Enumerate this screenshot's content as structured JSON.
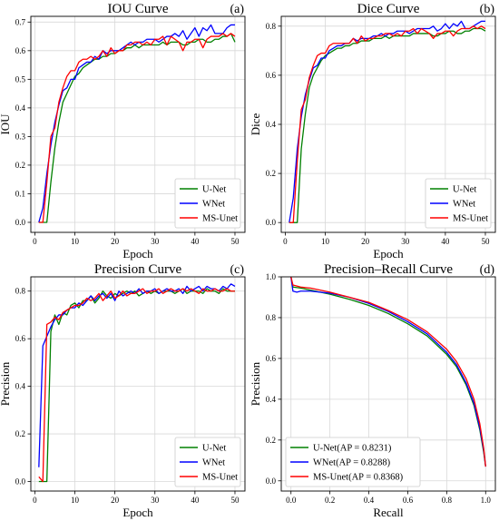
{
  "chart_data": [
    {
      "type": "line",
      "title": "IOU Curve",
      "panel_label": "(a)",
      "xlabel": "Epoch",
      "ylabel": "IOU",
      "xlim": [
        -1,
        52.5
      ],
      "ylim": [
        -0.035,
        0.72
      ],
      "xticks": [
        0,
        10,
        20,
        30,
        40,
        50
      ],
      "yticks": [
        0.0,
        0.1,
        0.2,
        0.3,
        0.4,
        0.5,
        0.6,
        0.7
      ],
      "ytick_labels": [
        "0.0",
        "0.1",
        "0.2",
        "0.3",
        "0.4",
        "0.5",
        "0.6",
        "0.7"
      ],
      "grid": true,
      "legend_position": "lower-right",
      "x": [
        1,
        2,
        3,
        4,
        5,
        6,
        7,
        8,
        9,
        10,
        11,
        12,
        13,
        14,
        15,
        16,
        17,
        18,
        19,
        20,
        21,
        22,
        23,
        24,
        25,
        26,
        27,
        28,
        29,
        30,
        31,
        32,
        33,
        34,
        35,
        36,
        37,
        38,
        39,
        40,
        41,
        42,
        43,
        44,
        45,
        46,
        47,
        48,
        49,
        50
      ],
      "series": [
        {
          "name": "U-Net",
          "color": "#008000",
          "values": [
            0.0,
            0.0,
            0.0,
            0.14,
            0.26,
            0.35,
            0.42,
            0.45,
            0.48,
            0.51,
            0.52,
            0.54,
            0.55,
            0.56,
            0.57,
            0.57,
            0.58,
            0.58,
            0.59,
            0.59,
            0.6,
            0.6,
            0.61,
            0.61,
            0.62,
            0.61,
            0.62,
            0.62,
            0.62,
            0.62,
            0.62,
            0.63,
            0.62,
            0.63,
            0.63,
            0.63,
            0.62,
            0.62,
            0.63,
            0.63,
            0.64,
            0.64,
            0.63,
            0.63,
            0.64,
            0.64,
            0.65,
            0.65,
            0.66,
            0.63
          ]
        },
        {
          "name": "WNet",
          "color": "#0000ff",
          "values": [
            0.0,
            0.05,
            0.17,
            0.27,
            0.35,
            0.41,
            0.46,
            0.47,
            0.5,
            0.5,
            0.54,
            0.55,
            0.56,
            0.56,
            0.58,
            0.57,
            0.6,
            0.59,
            0.6,
            0.6,
            0.6,
            0.61,
            0.62,
            0.63,
            0.62,
            0.63,
            0.63,
            0.64,
            0.64,
            0.64,
            0.63,
            0.64,
            0.65,
            0.65,
            0.66,
            0.65,
            0.67,
            0.64,
            0.66,
            0.68,
            0.65,
            0.68,
            0.67,
            0.69,
            0.66,
            0.66,
            0.66,
            0.68,
            0.69,
            0.69
          ]
        },
        {
          "name": "MS-Unet",
          "color": "#ff0000",
          "values": [
            0.0,
            0.0,
            0.14,
            0.3,
            0.33,
            0.42,
            0.47,
            0.51,
            0.53,
            0.53,
            0.56,
            0.57,
            0.57,
            0.58,
            0.57,
            0.58,
            0.6,
            0.58,
            0.61,
            0.59,
            0.6,
            0.6,
            0.62,
            0.62,
            0.63,
            0.63,
            0.62,
            0.63,
            0.62,
            0.64,
            0.64,
            0.65,
            0.62,
            0.65,
            0.64,
            0.63,
            0.6,
            0.63,
            0.63,
            0.64,
            0.64,
            0.61,
            0.64,
            0.65,
            0.65,
            0.65,
            0.66,
            0.65,
            0.66,
            0.65
          ]
        }
      ]
    },
    {
      "type": "line",
      "title": "Dice Curve",
      "panel_label": "(b)",
      "xlabel": "Epoch",
      "ylabel": "Dice",
      "xlim": [
        -1,
        52.5
      ],
      "ylim": [
        -0.04,
        0.84
      ],
      "xticks": [
        0,
        10,
        20,
        30,
        40,
        50
      ],
      "yticks": [
        0.0,
        0.2,
        0.4,
        0.6,
        0.8
      ],
      "ytick_labels": [
        "0.0",
        "0.2",
        "0.4",
        "0.6",
        "0.8"
      ],
      "grid": true,
      "legend_position": "lower-right",
      "x": [
        1,
        2,
        3,
        4,
        5,
        6,
        7,
        8,
        9,
        10,
        11,
        12,
        13,
        14,
        15,
        16,
        17,
        18,
        19,
        20,
        21,
        22,
        23,
        24,
        25,
        26,
        27,
        28,
        29,
        30,
        31,
        32,
        33,
        34,
        35,
        36,
        37,
        38,
        39,
        40,
        41,
        42,
        43,
        44,
        45,
        46,
        47,
        48,
        49,
        50
      ],
      "series": [
        {
          "name": "U-Net",
          "color": "#008000",
          "values": [
            0.0,
            0.0,
            0.0,
            0.3,
            0.44,
            0.55,
            0.6,
            0.63,
            0.66,
            0.68,
            0.69,
            0.7,
            0.71,
            0.71,
            0.72,
            0.72,
            0.73,
            0.73,
            0.74,
            0.74,
            0.74,
            0.75,
            0.75,
            0.75,
            0.76,
            0.75,
            0.76,
            0.76,
            0.76,
            0.76,
            0.76,
            0.77,
            0.77,
            0.77,
            0.77,
            0.77,
            0.76,
            0.76,
            0.77,
            0.77,
            0.78,
            0.78,
            0.77,
            0.77,
            0.78,
            0.78,
            0.79,
            0.79,
            0.79,
            0.78
          ]
        },
        {
          "name": "WNet",
          "color": "#0000ff",
          "values": [
            0.0,
            0.1,
            0.3,
            0.43,
            0.52,
            0.58,
            0.63,
            0.64,
            0.67,
            0.67,
            0.7,
            0.71,
            0.72,
            0.72,
            0.73,
            0.73,
            0.75,
            0.74,
            0.75,
            0.75,
            0.75,
            0.76,
            0.76,
            0.77,
            0.76,
            0.77,
            0.77,
            0.78,
            0.78,
            0.78,
            0.77,
            0.78,
            0.79,
            0.79,
            0.79,
            0.79,
            0.8,
            0.78,
            0.79,
            0.81,
            0.79,
            0.81,
            0.8,
            0.82,
            0.79,
            0.79,
            0.8,
            0.81,
            0.82,
            0.82
          ]
        },
        {
          "name": "MS-Unet",
          "color": "#ff0000",
          "values": [
            0.0,
            0.0,
            0.25,
            0.46,
            0.5,
            0.59,
            0.64,
            0.68,
            0.69,
            0.69,
            0.72,
            0.73,
            0.73,
            0.73,
            0.73,
            0.73,
            0.75,
            0.73,
            0.76,
            0.74,
            0.75,
            0.75,
            0.76,
            0.76,
            0.77,
            0.77,
            0.76,
            0.77,
            0.76,
            0.78,
            0.78,
            0.79,
            0.77,
            0.79,
            0.78,
            0.77,
            0.75,
            0.77,
            0.77,
            0.78,
            0.78,
            0.76,
            0.78,
            0.79,
            0.79,
            0.79,
            0.8,
            0.79,
            0.8,
            0.79
          ]
        }
      ]
    },
    {
      "type": "line",
      "title": "Precision Curve",
      "panel_label": "(c)",
      "xlabel": "Epoch",
      "ylabel": "Precision",
      "xlim": [
        -1,
        52.5
      ],
      "ylim": [
        -0.04,
        0.86
      ],
      "xticks": [
        0,
        10,
        20,
        30,
        40,
        50
      ],
      "yticks": [
        0.0,
        0.2,
        0.4,
        0.6,
        0.8
      ],
      "ytick_labels": [
        "0.0",
        "0.2",
        "0.4",
        "0.6",
        "0.8"
      ],
      "grid": true,
      "legend_position": "lower-right",
      "x": [
        1,
        2,
        3,
        4,
        5,
        6,
        7,
        8,
        9,
        10,
        11,
        12,
        13,
        14,
        15,
        16,
        17,
        18,
        19,
        20,
        21,
        22,
        23,
        24,
        25,
        26,
        27,
        28,
        29,
        30,
        31,
        32,
        33,
        34,
        35,
        36,
        37,
        38,
        39,
        40,
        41,
        42,
        43,
        44,
        45,
        46,
        47,
        48,
        49,
        50
      ],
      "series": [
        {
          "name": "U-Net",
          "color": "#008000",
          "values": [
            0.0,
            0.0,
            0.0,
            0.63,
            0.7,
            0.66,
            0.71,
            0.7,
            0.74,
            0.75,
            0.73,
            0.76,
            0.76,
            0.78,
            0.75,
            0.77,
            0.8,
            0.78,
            0.77,
            0.79,
            0.78,
            0.79,
            0.8,
            0.79,
            0.8,
            0.78,
            0.79,
            0.8,
            0.79,
            0.8,
            0.79,
            0.8,
            0.8,
            0.8,
            0.79,
            0.8,
            0.81,
            0.79,
            0.8,
            0.8,
            0.8,
            0.79,
            0.81,
            0.8,
            0.8,
            0.79,
            0.81,
            0.8,
            0.8,
            0.8
          ]
        },
        {
          "name": "WNet",
          "color": "#0000ff",
          "values": [
            0.06,
            0.57,
            0.61,
            0.65,
            0.68,
            0.7,
            0.7,
            0.72,
            0.73,
            0.73,
            0.75,
            0.74,
            0.76,
            0.78,
            0.76,
            0.78,
            0.79,
            0.77,
            0.79,
            0.76,
            0.8,
            0.78,
            0.79,
            0.8,
            0.79,
            0.81,
            0.79,
            0.8,
            0.8,
            0.81,
            0.79,
            0.8,
            0.81,
            0.8,
            0.8,
            0.81,
            0.79,
            0.82,
            0.8,
            0.81,
            0.82,
            0.8,
            0.82,
            0.81,
            0.81,
            0.8,
            0.82,
            0.81,
            0.83,
            0.82
          ]
        },
        {
          "name": "MS-Unet",
          "color": "#ff0000",
          "values": [
            0.02,
            0.0,
            0.66,
            0.67,
            0.69,
            0.68,
            0.71,
            0.72,
            0.73,
            0.74,
            0.74,
            0.75,
            0.77,
            0.76,
            0.77,
            0.79,
            0.76,
            0.78,
            0.8,
            0.77,
            0.78,
            0.8,
            0.78,
            0.79,
            0.79,
            0.8,
            0.81,
            0.79,
            0.8,
            0.8,
            0.81,
            0.79,
            0.8,
            0.81,
            0.8,
            0.8,
            0.81,
            0.8,
            0.81,
            0.8,
            0.79,
            0.81,
            0.8,
            0.8,
            0.81,
            0.8,
            0.8,
            0.81,
            0.8,
            0.8
          ]
        }
      ]
    },
    {
      "type": "line",
      "title": "Precision–Recall Curve",
      "panel_label": "(d)",
      "xlabel": "Recall",
      "ylabel": "Precision",
      "xlim": [
        -0.05,
        1.05
      ],
      "ylim": [
        -0.05,
        1.0
      ],
      "xticks": [
        0.0,
        0.2,
        0.4,
        0.6,
        0.8,
        1.0
      ],
      "xtick_labels": [
        "0.0",
        "0.2",
        "0.4",
        "0.6",
        "0.8",
        "1.0"
      ],
      "yticks": [
        0.0,
        0.2,
        0.4,
        0.6,
        0.8,
        1.0
      ],
      "ytick_labels": [
        "0.0",
        "0.2",
        "0.4",
        "0.6",
        "0.8",
        "1.0"
      ],
      "grid": true,
      "legend_position": "lower-left",
      "series": [
        {
          "name": "U-Net(AP = 0.8231)",
          "color": "#008000",
          "x": [
            0.0,
            0.01,
            0.05,
            0.1,
            0.2,
            0.3,
            0.4,
            0.5,
            0.6,
            0.7,
            0.8,
            0.85,
            0.9,
            0.94,
            0.97,
            0.99,
            1.0
          ],
          "values": [
            1.0,
            0.95,
            0.945,
            0.935,
            0.915,
            0.89,
            0.86,
            0.82,
            0.77,
            0.71,
            0.62,
            0.56,
            0.47,
            0.37,
            0.25,
            0.14,
            0.07
          ]
        },
        {
          "name": "WNet(AP = 0.8288)",
          "color": "#0000ff",
          "x": [
            0.0,
            0.01,
            0.03,
            0.05,
            0.1,
            0.2,
            0.3,
            0.4,
            0.5,
            0.6,
            0.7,
            0.8,
            0.85,
            0.9,
            0.94,
            0.97,
            0.99,
            1.0
          ],
          "values": [
            1.0,
            0.93,
            0.925,
            0.93,
            0.93,
            0.92,
            0.9,
            0.87,
            0.83,
            0.78,
            0.72,
            0.63,
            0.57,
            0.48,
            0.38,
            0.26,
            0.15,
            0.07
          ]
        },
        {
          "name": "MS-Unet(AP = 0.8368)",
          "color": "#ff0000",
          "x": [
            0.0,
            0.01,
            0.05,
            0.1,
            0.2,
            0.3,
            0.4,
            0.5,
            0.6,
            0.7,
            0.8,
            0.85,
            0.9,
            0.94,
            0.97,
            0.99,
            1.0
          ],
          "values": [
            1.0,
            0.96,
            0.95,
            0.945,
            0.925,
            0.9,
            0.875,
            0.835,
            0.79,
            0.73,
            0.645,
            0.585,
            0.5,
            0.4,
            0.28,
            0.16,
            0.07
          ]
        }
      ]
    }
  ]
}
